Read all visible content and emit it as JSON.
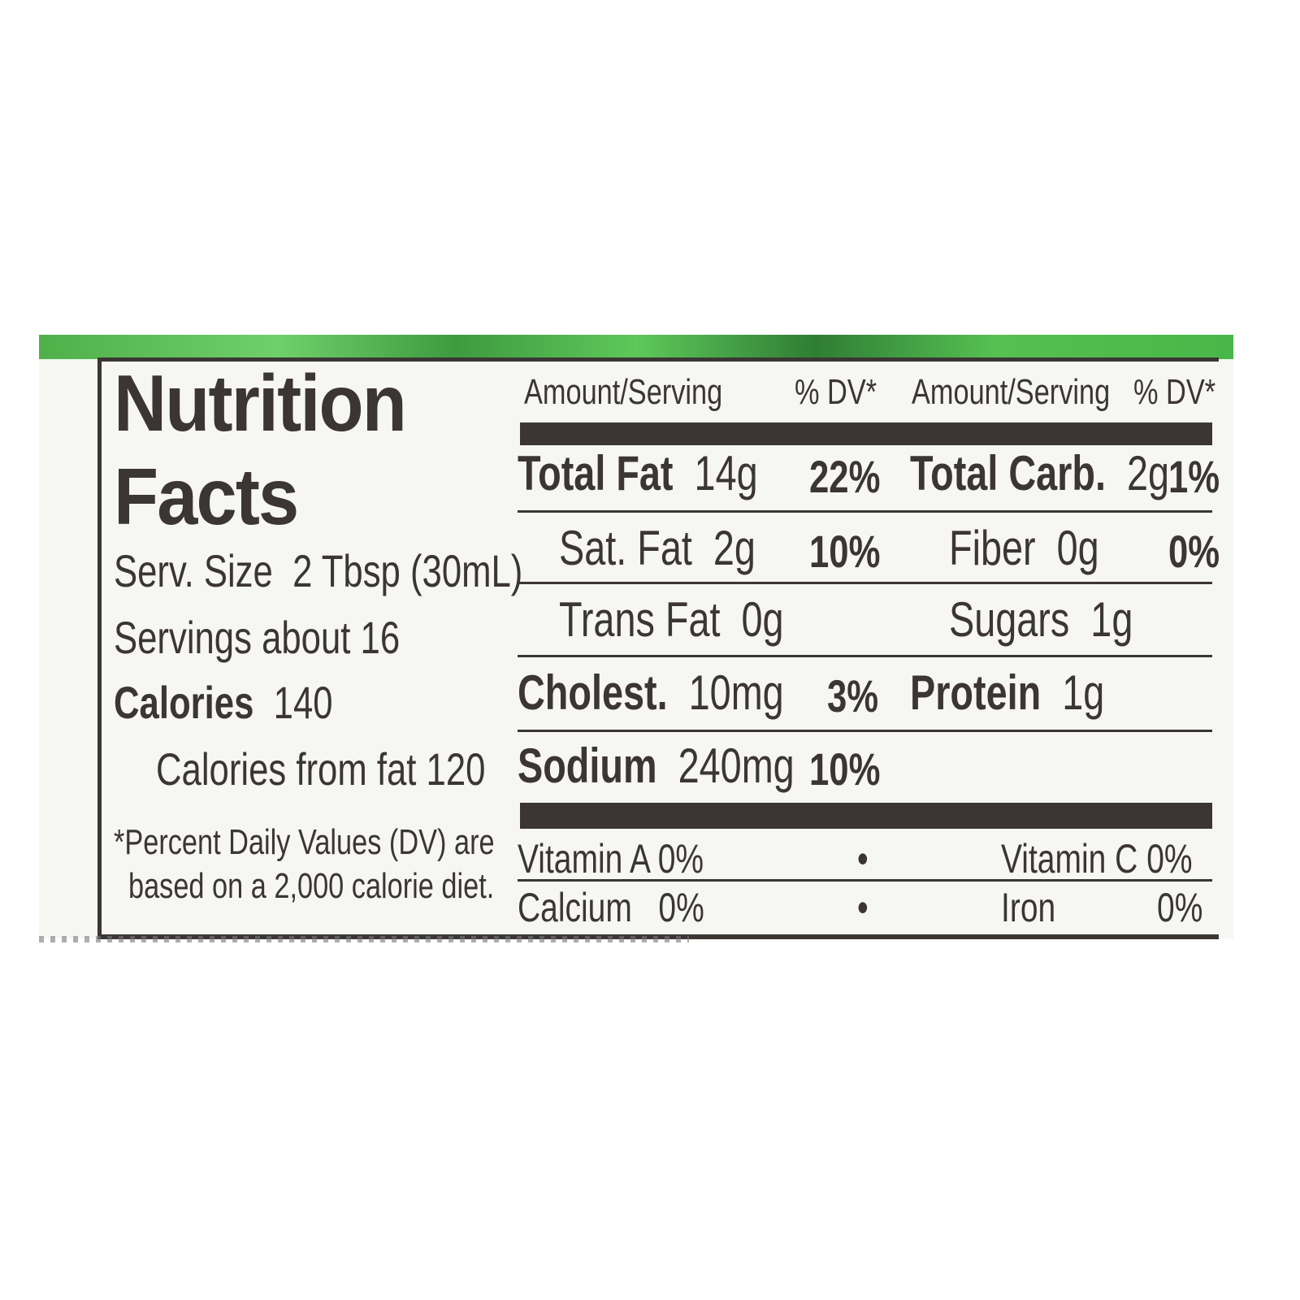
{
  "title_line1": "Nutrition",
  "title_line2": "Facts",
  "serving_size_label": "Serv. Size",
  "serving_size": "2 Tbsp (30mL)",
  "servings": "Servings about 16",
  "calories_label": "Calories",
  "calories": "140",
  "calories_from_fat": "Calories from fat  120",
  "footnote_line1": "*Percent Daily Values (DV) are",
  "footnote_line2": "based on a 2,000 calorie diet.",
  "header": {
    "amount": "Amount/Serving",
    "dv": "% DV*"
  },
  "left_nutrients": [
    {
      "name": "Total Fat",
      "amount": "14g",
      "dv": "22%"
    },
    {
      "name": "Sat. Fat",
      "amount": "2g",
      "dv": "10%"
    },
    {
      "name": "Trans Fat",
      "amount": "0g",
      "dv": ""
    },
    {
      "name": "Cholest.",
      "amount": "10mg",
      "dv": "3%"
    },
    {
      "name": "Sodium",
      "amount": "240mg",
      "dv": "10%"
    }
  ],
  "right_nutrients": [
    {
      "name": "Total Carb.",
      "amount": "2g",
      "dv": "1%"
    },
    {
      "name": "Fiber",
      "amount": "0g",
      "dv": "0%"
    },
    {
      "name": "Sugars",
      "amount": "1g",
      "dv": ""
    },
    {
      "name": "Protein",
      "amount": "1g",
      "dv": ""
    }
  ],
  "vitamins": [
    {
      "name": "Vitamin A",
      "dv": "0%"
    },
    {
      "name": "Vitamin C",
      "dv": "0%"
    },
    {
      "name": "Calcium",
      "dv": "0%"
    },
    {
      "name": "Iron",
      "dv": "0%"
    }
  ],
  "bullet": "•"
}
